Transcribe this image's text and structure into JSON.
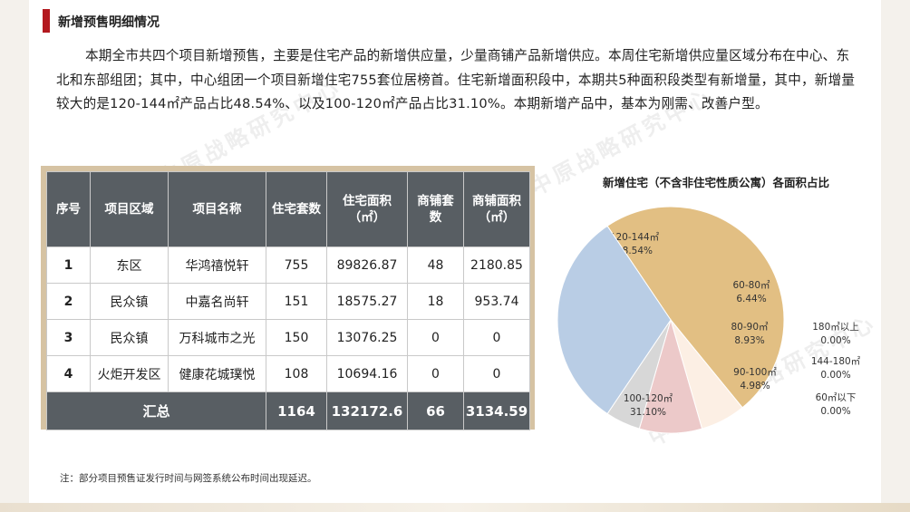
{
  "title": "新增预售明细情况",
  "paragraph": "本期全市共四个项目新增预售，主要是住宅产品的新增供应量，少量商铺产品新增供应。本周住宅新增供应量区域分布在中心、东北和东部组团；其中，中心组团一个项目新增住宅755套位居榜首。住宅新增面积段中，本期共5种面积段类型有新增量，其中，新增量较大的是120-144㎡产品占比48.54%、以及100-120㎡产品占比31.10%。本期新增产品中，基本为刚需、改善户型。",
  "table": {
    "headers": [
      "序号",
      "项目区域",
      "项目名称",
      "住宅套数",
      "住宅面积（㎡）",
      "商铺套数",
      "商铺面积（㎡）"
    ],
    "rows": [
      [
        "1",
        "东区",
        "华鸿禧悦轩",
        "755",
        "89826.87",
        "48",
        "2180.85"
      ],
      [
        "2",
        "民众镇",
        "中嘉名尚轩",
        "151",
        "18575.27",
        "18",
        "953.74"
      ],
      [
        "3",
        "民众镇",
        "万科城市之光",
        "150",
        "13076.25",
        "0",
        "0"
      ],
      [
        "4",
        "火炬开发区",
        "健康花城璞悦",
        "108",
        "10694.16",
        "0",
        "0"
      ]
    ],
    "total": [
      "汇总",
      "1164",
      "132172.6",
      "66",
      "3134.59"
    ]
  },
  "note": "注：部分项目预售证发行时间与网签系统公布时间出现延迟。",
  "watermark": "中山中原战略研究中心",
  "chart_data": {
    "type": "pie",
    "title": "新增住宅（不含非住宅性质公寓）各面积占比",
    "slices": [
      {
        "label": "120-144㎡",
        "value": 48.54,
        "pct_label": "48.54%",
        "color": "#e2bf83"
      },
      {
        "label": "60-80㎡",
        "value": 6.44,
        "pct_label": "6.44%",
        "color": "#fcefe4"
      },
      {
        "label": "80-90㎡",
        "value": 8.93,
        "pct_label": "8.93%",
        "color": "#ecc9c9"
      },
      {
        "label": "90-100㎡",
        "value": 4.98,
        "pct_label": "4.98%",
        "color": "#d7d7d7"
      },
      {
        "label": "100-120㎡",
        "value": 31.1,
        "pct_label": "31.10%",
        "color": "#b9cde5"
      }
    ],
    "zero_entries": [
      {
        "label": "180㎡以上",
        "pct_label": "0.00%"
      },
      {
        "label": "144-180㎡",
        "pct_label": "0.00%"
      },
      {
        "label": "60㎡以下",
        "pct_label": "0.00%"
      }
    ]
  }
}
